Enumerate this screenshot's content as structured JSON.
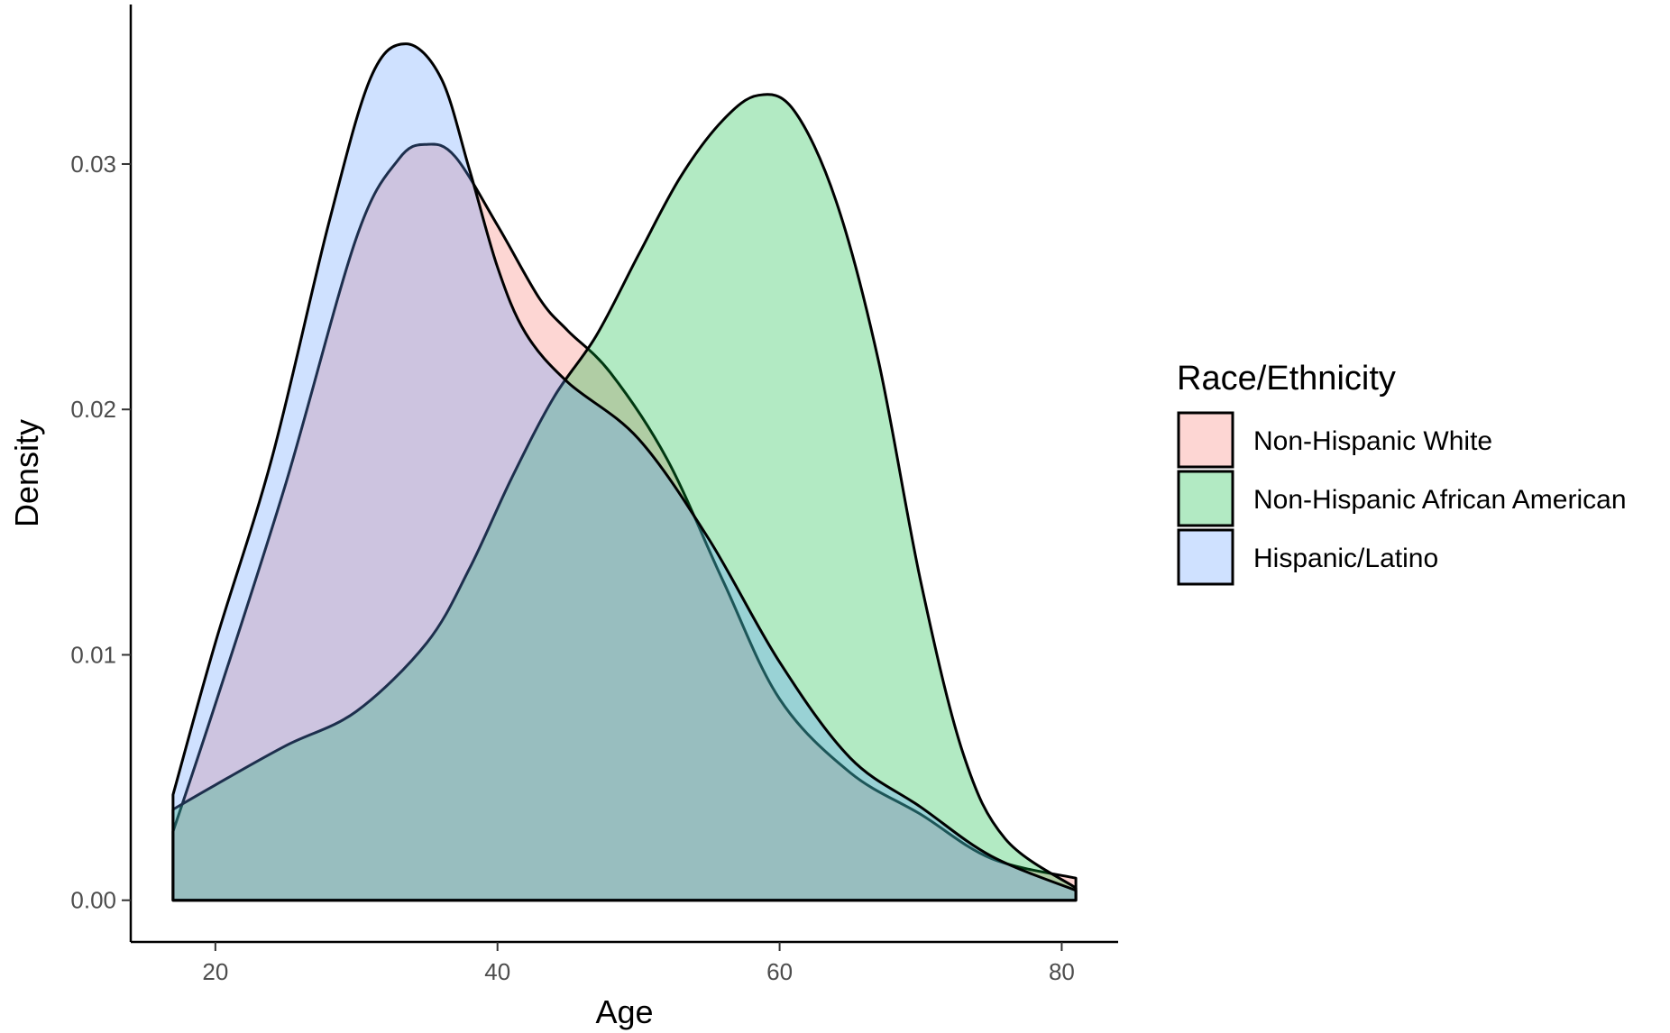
{
  "chart_data": {
    "type": "area",
    "xlabel": "Age",
    "ylabel": "Density",
    "xlim": [
      14,
      84
    ],
    "ylim": [
      -0.0017,
      0.0365
    ],
    "x_ticks": [
      20,
      40,
      60,
      80
    ],
    "x_tick_labels": [
      "20",
      "40",
      "60",
      "80"
    ],
    "y_ticks": [
      0.0,
      0.01,
      0.02,
      0.03
    ],
    "y_tick_labels": [
      "0.00",
      "0.01",
      "0.02",
      "0.03"
    ],
    "grid": false,
    "legend": {
      "title": "Race/Ethnicity",
      "position": "right"
    },
    "series": [
      {
        "name": "Non-Hispanic White",
        "color": "#F8766D",
        "x": [
          17,
          20,
          25,
          30,
          33,
          35,
          37,
          40,
          43,
          45,
          48,
          52,
          56,
          60,
          65,
          70,
          75,
          81
        ],
        "y": [
          0.0028,
          0.008,
          0.017,
          0.027,
          0.0302,
          0.0308,
          0.0303,
          0.0275,
          0.0245,
          0.0232,
          0.0215,
          0.018,
          0.013,
          0.0082,
          0.0052,
          0.0035,
          0.0017,
          0.0009
        ]
      },
      {
        "name": "Non-Hispanic African American",
        "color": "#00BA38",
        "x": [
          17,
          20,
          25,
          30,
          35,
          38,
          41,
          44,
          47,
          50,
          53,
          56,
          58.5,
          61,
          64,
          67,
          70,
          73,
          76,
          81
        ],
        "y": [
          0.0037,
          0.0047,
          0.0063,
          0.0077,
          0.0105,
          0.0135,
          0.0172,
          0.0205,
          0.023,
          0.0263,
          0.0295,
          0.0318,
          0.0328,
          0.0322,
          0.0285,
          0.022,
          0.013,
          0.006,
          0.0025,
          0.0005
        ]
      },
      {
        "name": "Hispanic/Latino",
        "color": "#619CFF",
        "x": [
          17,
          20,
          24,
          28,
          31,
          33.5,
          36,
          38,
          40,
          42,
          45,
          50,
          55,
          60,
          65,
          70,
          75,
          81
        ],
        "y": [
          0.0043,
          0.0105,
          0.018,
          0.0275,
          0.0335,
          0.0349,
          0.0335,
          0.0298,
          0.0258,
          0.0231,
          0.0211,
          0.0188,
          0.0147,
          0.0097,
          0.0058,
          0.0038,
          0.0018,
          0.0004
        ]
      }
    ]
  }
}
